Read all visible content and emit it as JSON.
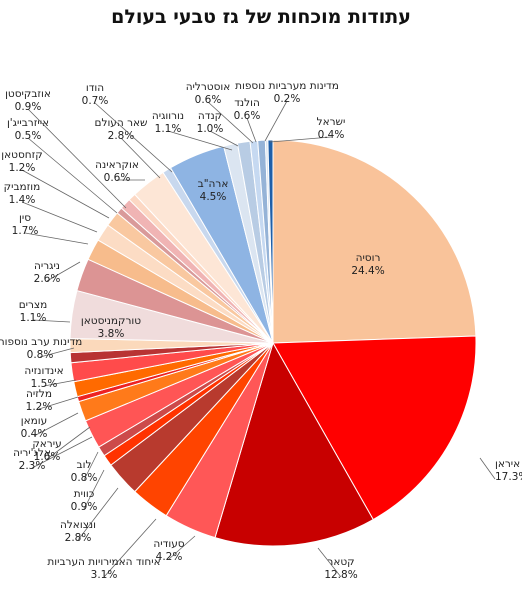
{
  "chart_data": {
    "type": "pie",
    "title": "עתודות מוכחות של גז טבעי בעולם",
    "start_at": "12 o'clock",
    "direction": "clockwise",
    "slices": [
      {
        "label": "רוסיה",
        "pct": "24.4%",
        "value": 24.4,
        "color": "#f9c39a"
      },
      {
        "label": "איראן",
        "pct": "17.3%",
        "value": 17.3,
        "color": "#ff0000"
      },
      {
        "label": "קטאר",
        "pct": "12.8%",
        "value": 12.8,
        "color": "#c80000"
      },
      {
        "label": "סעודיה",
        "pct": "4.2%",
        "value": 4.2,
        "color": "#ff5757"
      },
      {
        "label": "איחוד האמירויות הערביות",
        "pct": "3.1%",
        "value": 3.1,
        "color": "#ff4400"
      },
      {
        "label": "ונצואלה",
        "pct": "2.8%",
        "value": 2.8,
        "color": "#b83a2e"
      },
      {
        "label": "כווית",
        "pct": "0.9%",
        "value": 0.9,
        "color": "#ff3300"
      },
      {
        "label": "לוב",
        "pct": "0.8%",
        "value": 0.8,
        "color": "#cc4a4a"
      },
      {
        "label": "אלג'יריה",
        "pct": "2.3%",
        "value": 2.3,
        "color": "#ff5555"
      },
      {
        "label": "עיראק",
        "pct": "1.6%",
        "value": 1.6,
        "color": "#ff7a1a"
      },
      {
        "label": "עומאן",
        "pct": "0.4%",
        "value": 0.4,
        "color": "#ee2222"
      },
      {
        "label": "מלזיה",
        "pct": "1.2%",
        "value": 1.2,
        "color": "#ff6a00"
      },
      {
        "label": "אינדונזיה",
        "pct": "1.5%",
        "value": 1.5,
        "color": "#ff4b4b"
      },
      {
        "label": "מדינות ערב נוספות",
        "pct": "0.8%",
        "value": 0.8,
        "color": "#b83333"
      },
      {
        "label": "מצרים",
        "pct": "1.1%",
        "value": 1.1,
        "color": "#fbd9bb"
      },
      {
        "label": "טורקמניסטאן",
        "pct": "3.8%",
        "value": 3.8,
        "color": "#f0dcdc"
      },
      {
        "label": "ניגריה",
        "pct": "2.6%",
        "value": 2.6,
        "color": "#dc9494"
      },
      {
        "label": "סין",
        "pct": "1.7%",
        "value": 1.7,
        "color": "#f7bc8c"
      },
      {
        "label": "מוזמביק",
        "pct": "1.4%",
        "value": 1.4,
        "color": "#fcdcc4"
      },
      {
        "label": "קזחסטאן",
        "pct": "1.2%",
        "value": 1.2,
        "color": "#f9c8a0"
      },
      {
        "label": "אייזרבייג'ן",
        "pct": "0.5%",
        "value": 0.5,
        "color": "#d99a9a"
      },
      {
        "label": "אוזבקיסטן",
        "pct": "0.9%",
        "value": 0.9,
        "color": "#f0b4b4"
      },
      {
        "label": "אוקראינה",
        "pct": "0.6%",
        "value": 0.6,
        "color": "#fcd8c4"
      },
      {
        "label": "שאר העולם",
        "pct": "2.8%",
        "value": 2.8,
        "color": "#fde6d6"
      },
      {
        "label": "הודו",
        "pct": "0.7%",
        "value": 0.7,
        "color": "#c8d8ee"
      },
      {
        "label": "ארה\"ב",
        "pct": "4.5%",
        "value": 4.5,
        "color": "#8eb4e3"
      },
      {
        "label": "נורווגיה",
        "pct": "1.1%",
        "value": 1.1,
        "color": "#dbe5f1"
      },
      {
        "label": "קנדה",
        "pct": "1.0%",
        "value": 1.0,
        "color": "#b8cce4"
      },
      {
        "label": "אוסטרליה",
        "pct": "0.6%",
        "value": 0.6,
        "color": "#c6d9f1"
      },
      {
        "label": "הולנד",
        "pct": "0.6%",
        "value": 0.6,
        "color": "#95b3d7"
      },
      {
        "label": "מדינות מערביות נוספות",
        "pct": "0.2%",
        "value": 0.2,
        "color": "#dbe5f1"
      },
      {
        "label": "ישראל",
        "pct": "0.4%",
        "value": 0.4,
        "color": "#1f5fa8"
      }
    ]
  }
}
